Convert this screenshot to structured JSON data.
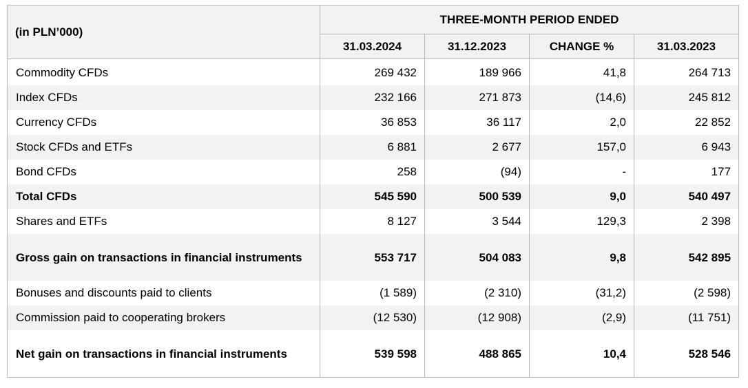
{
  "table": {
    "corner_label": "(in PLN’000)",
    "group_header": "THREE-MONTH PERIOD ENDED",
    "columns": [
      "31.03.2024",
      "31.12.2023",
      "CHANGE %",
      "31.03.2023"
    ],
    "rows": [
      {
        "label": "Commodity CFDs",
        "values": [
          "269 432",
          "189 966",
          "41,8",
          "264 713"
        ],
        "bold": false
      },
      {
        "label": "Index CFDs",
        "values": [
          "232 166",
          "271 873",
          "(14,6)",
          "245 812"
        ],
        "bold": false
      },
      {
        "label": "Currency CFDs",
        "values": [
          "36 853",
          "36 117",
          "2,0",
          "22 852"
        ],
        "bold": false
      },
      {
        "label": "Stock CFDs and ETFs",
        "values": [
          "6 881",
          "2 677",
          "157,0",
          "6 943"
        ],
        "bold": false
      },
      {
        "label": "Bond CFDs",
        "values": [
          "258",
          "(94)",
          "-",
          "177"
        ],
        "bold": false
      },
      {
        "label": "Total CFDs",
        "values": [
          "545 590",
          "500 539",
          "9,0",
          "540 497"
        ],
        "bold": true
      },
      {
        "label": "Shares and ETFs",
        "values": [
          "8 127",
          "3 544",
          "129,3",
          "2 398"
        ],
        "bold": false
      },
      {
        "label": "Gross gain on transactions in financial instruments",
        "values": [
          "553 717",
          "504 083",
          "9,8",
          "542 895"
        ],
        "bold": true
      },
      {
        "label": "Bonuses and discounts paid to clients",
        "values": [
          "(1 589)",
          "(2 310)",
          "(31,2)",
          "(2 598)"
        ],
        "bold": false
      },
      {
        "label": "Commission paid to cooperating brokers",
        "values": [
          "(12 530)",
          "(12 908)",
          "(2,9)",
          "(11 751)"
        ],
        "bold": false
      },
      {
        "label": "Net gain on transactions in financial instruments",
        "values": [
          "539 598",
          "488 865",
          "10,4",
          "528 546"
        ],
        "bold": true
      }
    ]
  }
}
